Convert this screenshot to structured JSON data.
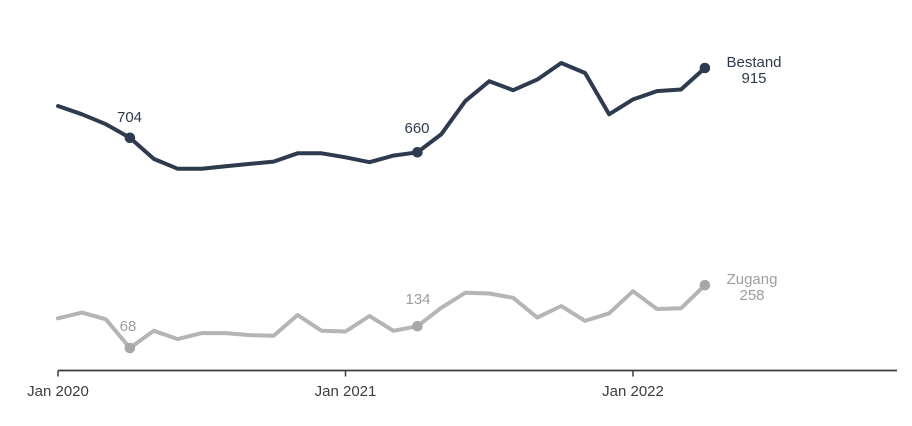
{
  "chart_data": {
    "type": "line",
    "title": "",
    "xlabel": "",
    "ylabel": "",
    "grid": false,
    "legend_position": "end-of-line",
    "x_unit": "month",
    "x": [
      "Jan 2020",
      "Feb 2020",
      "Mar 2020",
      "Apr 2020",
      "May 2020",
      "Jun 2020",
      "Jul 2020",
      "Aug 2020",
      "Sep 2020",
      "Oct 2020",
      "Nov 2020",
      "Dec 2020",
      "Jan 2021",
      "Feb 2021",
      "Mar 2021",
      "Apr 2021",
      "May 2021",
      "Jun 2021",
      "Jul 2021",
      "Aug 2021",
      "Sep 2021",
      "Oct 2021",
      "Nov 2021",
      "Dec 2021",
      "Jan 2022",
      "Feb 2022",
      "Mar 2022",
      "Apr 2022"
    ],
    "ylim": [
      0,
      950
    ],
    "axis": {
      "tick_labels": [
        "Jan 2020",
        "Jan 2021",
        "Jan 2022"
      ],
      "tick_month_index": [
        0,
        12,
        24
      ],
      "line_color": "#3d3d3d"
    },
    "series": [
      {
        "name": "Bestand",
        "line_color": "#2e3a4e",
        "marker_color": "#2e3a4e",
        "label_color": "#2e3a4e",
        "values": [
          800,
          775,
          745,
          704,
          640,
          610,
          610,
          618,
          625,
          632,
          657,
          657,
          645,
          630,
          650,
          660,
          715,
          815,
          875,
          848,
          880,
          930,
          900,
          775,
          820,
          845,
          850,
          915
        ],
        "labeled_points": [
          {
            "month_index": 3,
            "x": "Apr 2020",
            "value": 704,
            "label": "704"
          },
          {
            "month_index": 15,
            "x": "Apr 2021",
            "value": 660,
            "label": "660"
          },
          {
            "month_index": 27,
            "x": "Apr 2022",
            "value": 915,
            "label": "915"
          }
        ],
        "end_label": {
          "name": "Bestand",
          "value": "915"
        }
      },
      {
        "name": "Zugang",
        "line_color": "#b5b5b5",
        "marker_color": "#a8a8a8",
        "label_color": "#9e9e9e",
        "values": [
          158,
          175,
          155,
          68,
          120,
          95,
          113,
          113,
          107,
          105,
          168,
          120,
          118,
          165,
          120,
          134,
          190,
          235,
          233,
          220,
          160,
          195,
          150,
          173,
          240,
          186,
          188,
          258
        ],
        "labeled_points": [
          {
            "month_index": 3,
            "x": "Apr 2020",
            "value": 68,
            "label": "68"
          },
          {
            "month_index": 15,
            "x": "Apr 2021",
            "value": 134,
            "label": "134"
          },
          {
            "month_index": 27,
            "x": "Apr 2022",
            "value": 258,
            "label": "258"
          }
        ],
        "end_label": {
          "name": "Zugang",
          "value": "258"
        }
      }
    ]
  }
}
